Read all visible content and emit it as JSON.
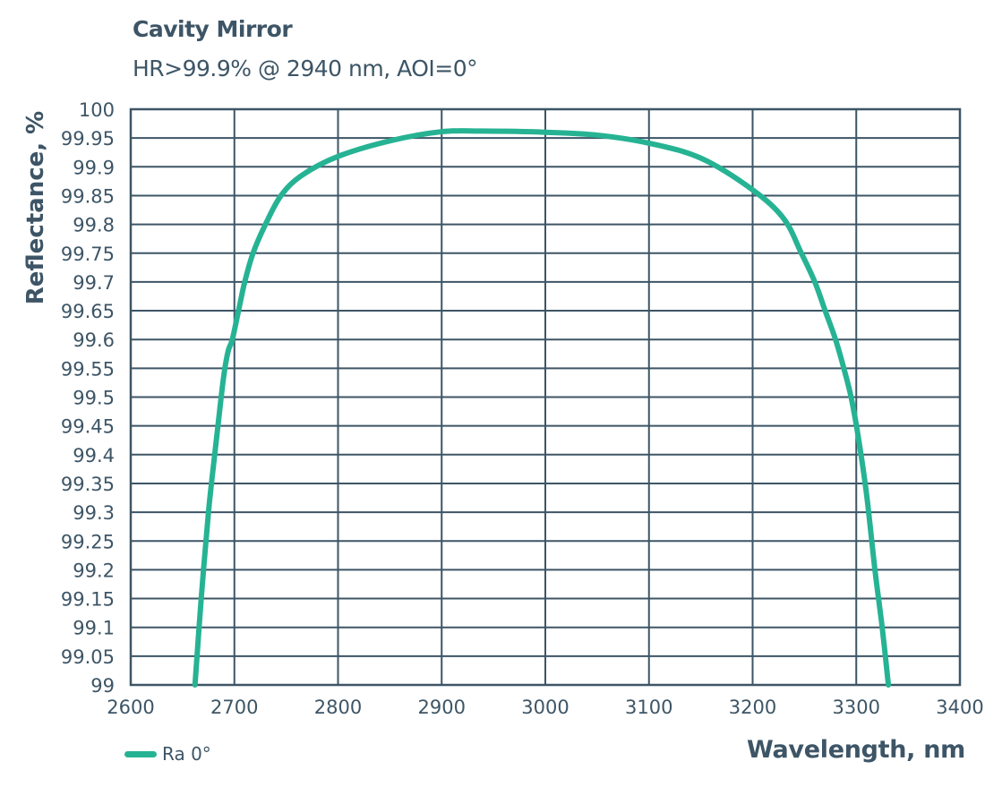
{
  "chart_data": {
    "type": "line",
    "title": "Cavity Mirror",
    "subtitle": "HR>99.9% @ 2940 nm, AOI=0°",
    "xlabel": "Wavelength, nm",
    "ylabel": "Reflectance, %",
    "xlim": [
      2600,
      3400
    ],
    "ylim": [
      99,
      100
    ],
    "grid": true,
    "legend_position": "bottom-left",
    "x_ticks": [
      "2600",
      "2700",
      "2800",
      "2900",
      "3000",
      "3100",
      "3200",
      "3300",
      "3400"
    ],
    "y_ticks": [
      "100",
      "99.95",
      "99.9",
      "99.85",
      "99.8",
      "99.75",
      "99.7",
      "99.65",
      "99.6",
      "99.55",
      "99.5",
      "99.45",
      "99.4",
      "99.35",
      "99.3",
      "99.25",
      "99.2",
      "99.15",
      "99.1",
      "99.05",
      "99"
    ],
    "series": [
      {
        "name": "Ra 0°",
        "color": "#26b393",
        "x": [
          2662,
          2668,
          2675,
          2681,
          2686,
          2690,
          2694,
          2698,
          2704,
          2710,
          2718,
          2730,
          2745,
          2765,
          2800,
          2850,
          2900,
          2940,
          3000,
          3050,
          3100,
          3150,
          3200,
          3230,
          3247,
          3260,
          3270,
          3280,
          3288,
          3295,
          3302,
          3310,
          3318,
          3325,
          3331
        ],
        "values": [
          99.0,
          99.15,
          99.3,
          99.4,
          99.48,
          99.54,
          99.58,
          99.6,
          99.65,
          99.7,
          99.75,
          99.8,
          99.85,
          99.885,
          99.918,
          99.945,
          99.961,
          99.962,
          99.96,
          99.955,
          99.941,
          99.915,
          99.86,
          99.81,
          99.75,
          99.7,
          99.65,
          99.6,
          99.55,
          99.5,
          99.43,
          99.33,
          99.2,
          99.1,
          99.0
        ]
      }
    ]
  },
  "legend": {
    "items": [
      {
        "label": "Ra 0°",
        "color": "#26b393"
      }
    ]
  },
  "colors": {
    "text": "#3d5566",
    "grid": "#3d5566",
    "plot_background": "#ffffff",
    "curve": "#26b393"
  }
}
